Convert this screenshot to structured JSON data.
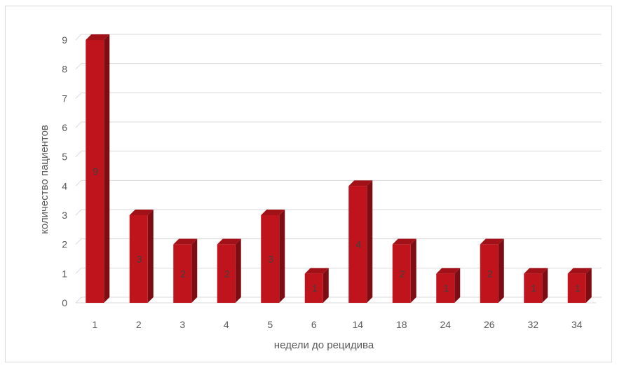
{
  "chart_data": {
    "type": "bar",
    "style": "3d-column",
    "categories": [
      "1",
      "2",
      "3",
      "4",
      "5",
      "6",
      "14",
      "18",
      "24",
      "26",
      "32",
      "34"
    ],
    "values": [
      9,
      3,
      2,
      2,
      3,
      1,
      4,
      2,
      1,
      2,
      1,
      1
    ],
    "data_labels": [
      "9",
      "3",
      "2",
      "2",
      "3",
      "1",
      "4",
      "2",
      "1",
      "2",
      "1",
      "1"
    ],
    "y_ticks": [
      "0",
      "1",
      "2",
      "3",
      "4",
      "5",
      "6",
      "7",
      "8",
      "9"
    ],
    "xlabel": "недели до рецидива",
    "ylabel": "количество пациентов",
    "ylim": [
      0,
      9
    ],
    "grid": true,
    "legend": "none",
    "colors": {
      "bar_front": "#c0141c",
      "bar_side": "#7d0d12",
      "bar_top": "#a31118",
      "grid": "#d9d9d9",
      "text": "#595959"
    }
  }
}
